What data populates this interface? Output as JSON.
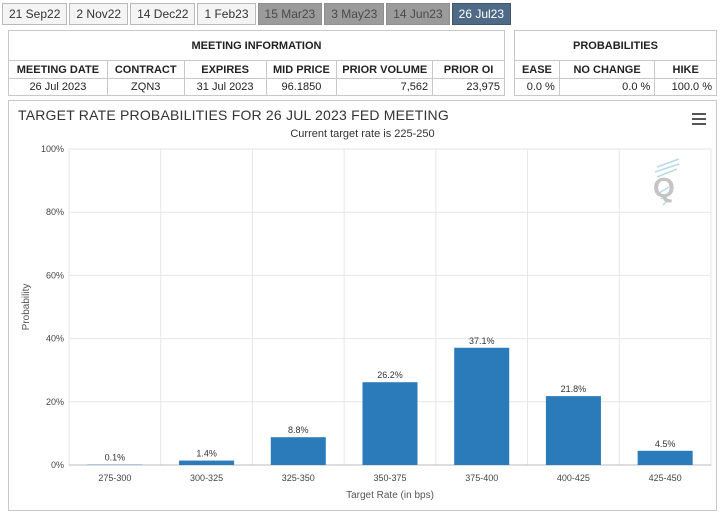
{
  "tabs": [
    {
      "label": "21 Sep22",
      "state": "normal"
    },
    {
      "label": "2 Nov22",
      "state": "normal"
    },
    {
      "label": "14 Dec22",
      "state": "normal"
    },
    {
      "label": "1 Feb23",
      "state": "normal"
    },
    {
      "label": "15 Mar23",
      "state": "past"
    },
    {
      "label": "3 May23",
      "state": "past"
    },
    {
      "label": "14 Jun23",
      "state": "past"
    },
    {
      "label": "26 Jul23",
      "state": "active"
    }
  ],
  "meeting_info": {
    "caption": "MEETING INFORMATION",
    "headers": [
      "MEETING DATE",
      "CONTRACT",
      "EXPIRES",
      "MID PRICE",
      "PRIOR VOLUME",
      "PRIOR OI"
    ],
    "row": [
      "26 Jul 2023",
      "ZQN3",
      "31 Jul 2023",
      "96.1850",
      "7,562",
      "23,975"
    ]
  },
  "probabilities": {
    "caption": "PROBABILITIES",
    "headers": [
      "EASE",
      "NO CHANGE",
      "HIKE"
    ],
    "row": [
      "0.0 %",
      "0.0 %",
      "100.0 %"
    ]
  },
  "chart_data": {
    "type": "bar",
    "title": "TARGET RATE PROBABILITIES FOR 26 JUL 2023 FED MEETING",
    "subtitle": "Current target rate is 225-250",
    "xlabel": "Target Rate (in bps)",
    "ylabel": "Probability",
    "categories": [
      "275-300",
      "300-325",
      "325-350",
      "350-375",
      "375-400",
      "400-425",
      "425-450"
    ],
    "values": [
      0.1,
      1.4,
      8.8,
      26.2,
      37.1,
      21.8,
      4.5
    ],
    "data_labels": [
      "0.1%",
      "1.4%",
      "8.8%",
      "26.2%",
      "37.1%",
      "21.8%",
      "4.5%"
    ],
    "ylim": [
      0,
      100
    ],
    "yticks": [
      0,
      20,
      40,
      60,
      80,
      100
    ],
    "ytick_labels": [
      "0%",
      "20%",
      "40%",
      "60%",
      "80%",
      "100%"
    ],
    "bar_color": "#2b7bba",
    "grid": true
  },
  "icons": {
    "menu": "hamburger-menu-icon",
    "logo": "quikstrike-q-logo"
  }
}
